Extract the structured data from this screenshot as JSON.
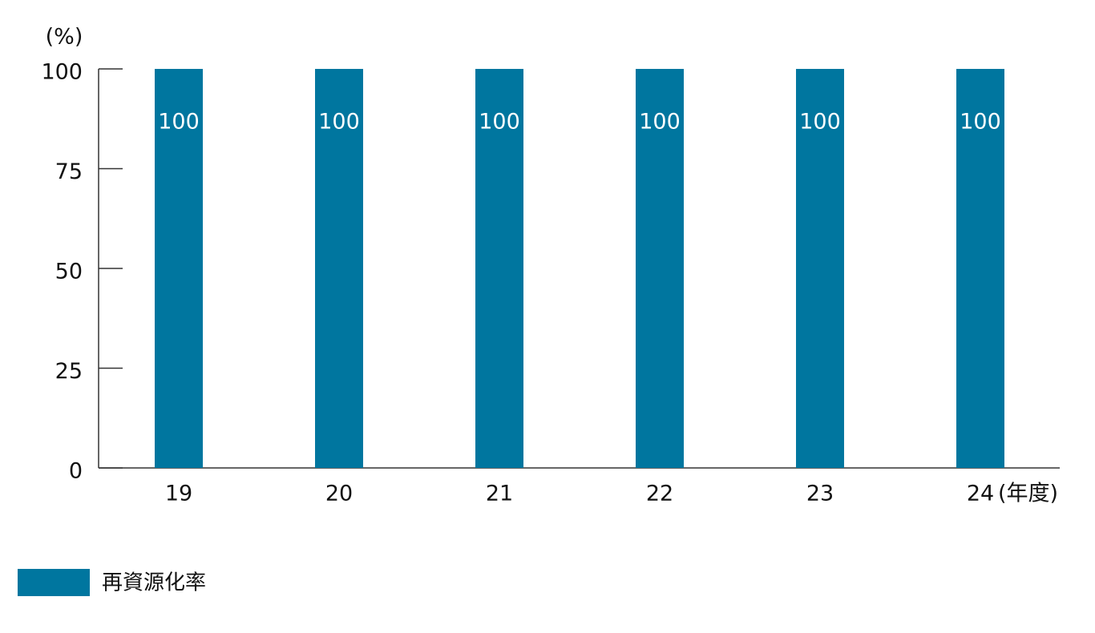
{
  "chart_data": {
    "type": "bar",
    "y_unit": "(%)",
    "x_unit": "(年度)",
    "categories": [
      "19",
      "20",
      "21",
      "22",
      "23",
      "24"
    ],
    "series": [
      {
        "name": "再資源化率",
        "color": "#00769f",
        "values": [
          100,
          100,
          100,
          100,
          100,
          100
        ]
      }
    ],
    "ylim": [
      0,
      100
    ],
    "yticks": [
      0,
      25,
      50,
      75,
      100
    ],
    "data_labels": true
  }
}
